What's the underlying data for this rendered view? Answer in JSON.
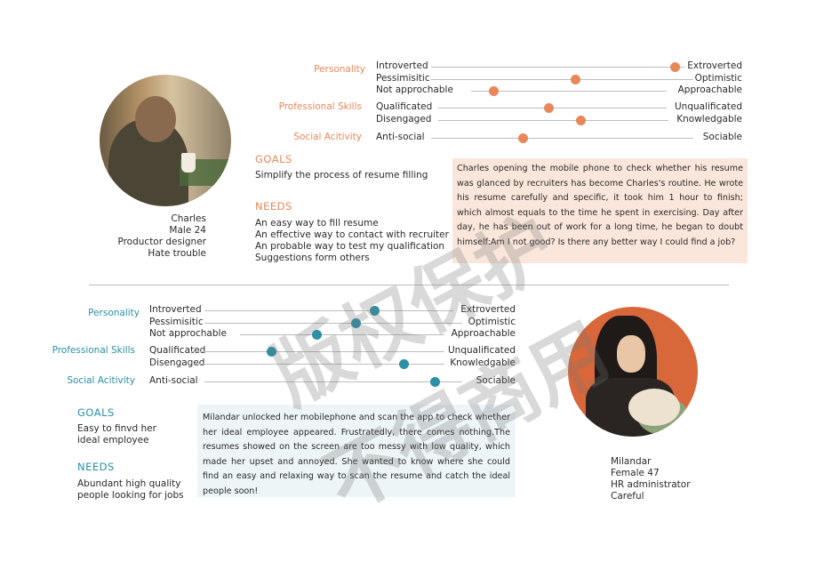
{
  "persona1": {
    "name": "Charles",
    "demographic": "Male  24",
    "role": "Productor designer",
    "trait": "Hate trouble",
    "labels": {
      "personality": "Personality",
      "professional": "Professional Skills",
      "social": "Social Acitivity"
    },
    "scales": [
      {
        "left": "Introverted",
        "right": "Extroverted",
        "value": 0.93
      },
      {
        "left": "Pessimisitic",
        "right": "Optimistic",
        "value": 0.55
      },
      {
        "left": "Not approchable",
        "right": "Approachable",
        "value": 0.24
      },
      {
        "left": "Qualificated",
        "right": "Unqualificated",
        "value": 0.45
      },
      {
        "left": "Disengaged",
        "right": "Knowledgable",
        "value": 0.57
      },
      {
        "left": "Anti-social",
        "right": "Sociable",
        "value": 0.35
      }
    ],
    "goals_title": "GOALS",
    "goals": [
      "Simplify the process of resume filling"
    ],
    "needs_title": "NEEDS",
    "needs": [
      "An easy way to fill resume",
      "An effective way to contact with recruiter",
      "An probable way to test my qualification",
      "Suggestions form others"
    ],
    "story": "Charles opening the mobile phone to check whether his resume was glanced by recruiters has become Charles's routine. He wrote his resume carefully and specific, it took him 1 hour to finish; which almost equals to the time he spent in exercising. Day after day, he has been out of work for a long time, he began to doubt himself:Am I not good? Is there any better way I could find a job?"
  },
  "persona2": {
    "name": "Milandar",
    "demographic": "Female  47",
    "role": "HR administrator",
    "trait": "Careful",
    "labels": {
      "personality": "Personality",
      "professional": "Professional Skills",
      "social": "Social Acitivity"
    },
    "scales": [
      {
        "left": "Introverted",
        "right": "Extroverted",
        "value": 0.71
      },
      {
        "left": "Pessimisitic",
        "right": "Optimistic",
        "value": 0.63
      },
      {
        "left": "Not approchable",
        "right": "Approachable",
        "value": 0.47
      },
      {
        "left": "Qualificated",
        "right": "Unqualificated",
        "value": 0.28
      },
      {
        "left": "Disengaged",
        "right": "Knowledgable",
        "value": 0.83
      },
      {
        "left": "Anti-social",
        "right": "Sociable",
        "value": 0.96
      }
    ],
    "goals_title": "GOALS",
    "goals": [
      "Easy to finvd her",
      "ideal employee"
    ],
    "needs_title": "NEEDS",
    "needs": [
      "Abundant high quality",
      "people looking for jobs"
    ],
    "story": "Milandar unlocked her mobilephone and scan the app to check whether her ideal employee appeared. Frustratedly, there comes nothing.The resumes showed on the screen are too messy with low quality, which made her upset and annoyed. She wanted to know where she could find an easy and relaxing way to scan the resume and catch the ideal people soon!"
  },
  "watermark": [
    "版权保护",
    "不得商用"
  ],
  "colors": {
    "persona1_accent": "#e8885a",
    "persona2_accent": "#2b8fa6"
  }
}
